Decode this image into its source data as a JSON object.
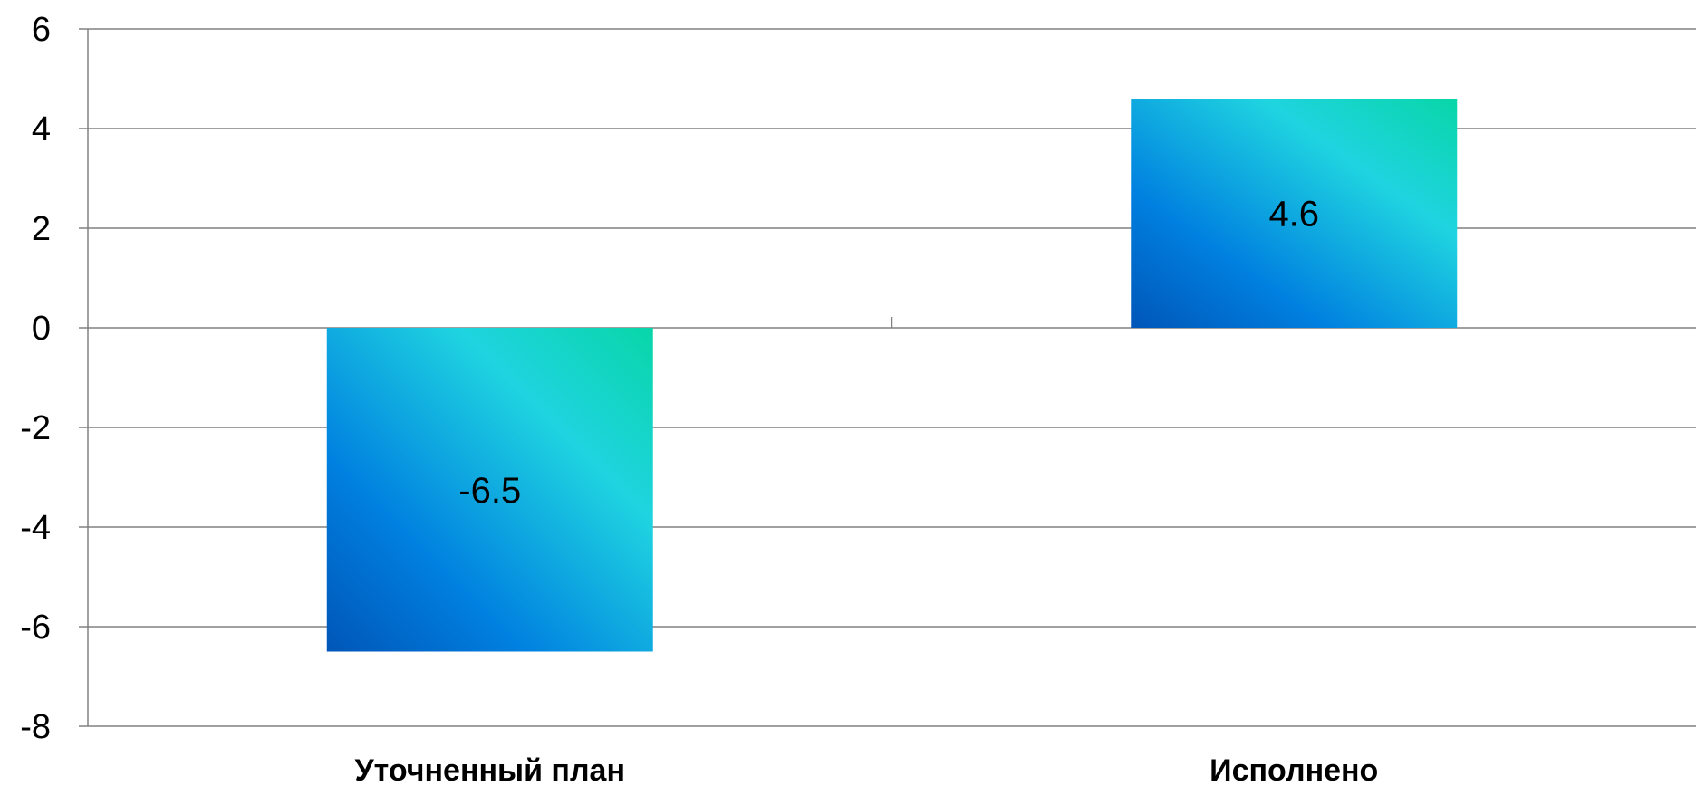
{
  "chart_data": {
    "type": "bar",
    "categories": [
      "Уточненный план",
      "Исполнено"
    ],
    "values": [
      -6.5,
      4.6
    ],
    "data_labels": [
      "-6.5",
      "4.6"
    ],
    "yticks": [
      6,
      4,
      2,
      0,
      -2,
      -4,
      -6,
      -8
    ],
    "ytick_labels": [
      "6",
      "4",
      "2",
      "0",
      "-2",
      "-4",
      "-6",
      "-8"
    ],
    "ylim": [
      -8,
      6
    ],
    "grid": true,
    "legend": "none",
    "bar_gradient": [
      "#0056b8",
      "#0080e0",
      "#1fd4e0",
      "#08d6a8"
    ],
    "gridline_color": "#808080"
  }
}
